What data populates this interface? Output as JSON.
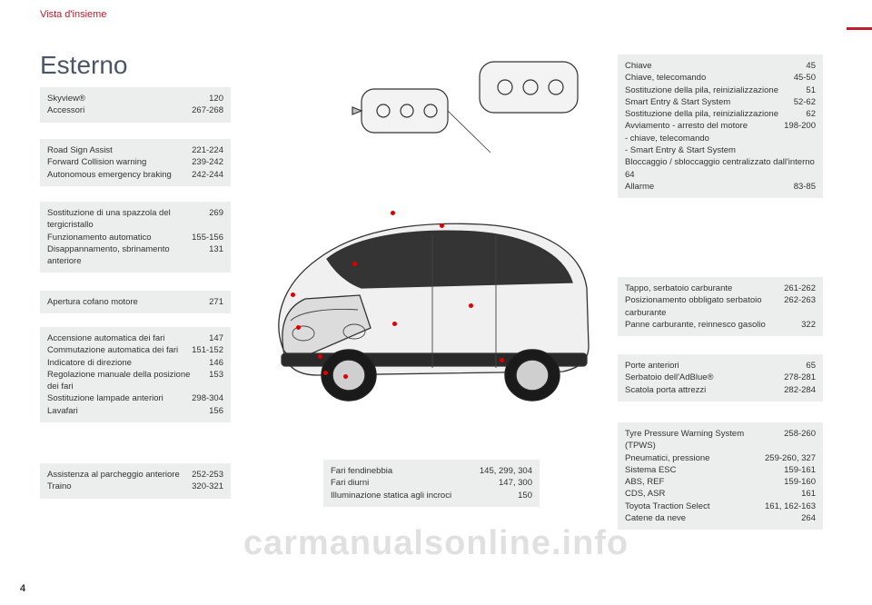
{
  "header": "Vista d'insieme",
  "title": "Esterno",
  "page_number": "4",
  "watermark": "carmanualsonline.info",
  "colors": {
    "accent": "#be1e2d",
    "box_bg": "#eceded",
    "title_color": "#4a5568",
    "text": "#333333"
  },
  "boxes": {
    "l1": [
      {
        "label": "Skyview®",
        "val": "120"
      },
      {
        "label": "Accessori",
        "val": "267-268"
      }
    ],
    "l2": [
      {
        "label": "Road Sign Assist",
        "val": "221-224"
      },
      {
        "label": "Forward Collision warning",
        "val": "239-242"
      },
      {
        "label": "Autonomous emergency braking",
        "val": "242-244"
      }
    ],
    "l3": [
      {
        "label": "Sostituzione di una spazzola del tergicristallo",
        "val": "269"
      },
      {
        "label": "Funzionamento automatico",
        "val": "155-156"
      },
      {
        "label": "Disappannamento, sbrinamento anteriore",
        "val": "131"
      }
    ],
    "l4": [
      {
        "label": "Apertura cofano motore",
        "val": "271"
      }
    ],
    "l5": [
      {
        "label": "Accensione automatica dei fari",
        "val": "147"
      },
      {
        "label": "Commutazione automatica dei fari",
        "val": "151-152"
      },
      {
        "label": "Indicatore di direzione",
        "val": "146"
      },
      {
        "label": "Regolazione manuale della posizione dei fari",
        "val": "153"
      },
      {
        "label": "Sostituzione lampade anteriori",
        "val": "298-304"
      },
      {
        "label": "Lavafari",
        "val": "156"
      }
    ],
    "l6": [
      {
        "label": "Assistenza al parcheggio anteriore",
        "val": "252-253"
      },
      {
        "label": "Traino",
        "val": "320-321"
      }
    ],
    "r1": [
      {
        "label": "Chiave",
        "val": "45"
      },
      {
        "label": "Chiave, telecomando",
        "val": "45-50"
      },
      {
        "label": "Sostituzione della pila, reinizializzazione",
        "val": "51"
      },
      {
        "label": "Smart Entry & Start System",
        "val": "52-62"
      },
      {
        "label": "Sostituzione della pila, reinizializzazione",
        "val": "62"
      },
      {
        "label": "Avviamento - arresto del motore",
        "val": "198-200"
      },
      {
        "label": "-   chiave, telecomando",
        "val": ""
      },
      {
        "label": "-   Smart Entry & Start System",
        "val": ""
      },
      {
        "label": "Bloccaggio / sbloccaggio centralizzato dall'interno     64",
        "val": ""
      },
      {
        "label": "Allarme",
        "val": "83-85"
      }
    ],
    "r2": [
      {
        "label": "Tappo, serbatoio carburante",
        "val": "261-262"
      },
      {
        "label": "Posizionamento obbligato serbatoio carburante",
        "val": "262-263"
      },
      {
        "label": "Panne carburante, reinnesco gasolio",
        "val": "322"
      }
    ],
    "r3": [
      {
        "label": "Porte anteriori",
        "val": "65"
      },
      {
        "label": "Serbatoio dell'AdBlue®",
        "val": "278-281"
      },
      {
        "label": "Scatola porta attrezzi",
        "val": "282-284"
      }
    ],
    "r4": [
      {
        "label": "Tyre Pressure Warning System (TPWS)",
        "val": "258-260"
      },
      {
        "label": "Pneumatici, pressione",
        "val": "259-260, 327"
      },
      {
        "label": "Sistema ESC",
        "val": "159-161"
      },
      {
        "label": "ABS, REF",
        "val": "159-160"
      },
      {
        "label": "CDS, ASR",
        "val": "161"
      },
      {
        "label": "Toyota Traction Select",
        "val": "161, 162-163"
      },
      {
        "label": "Catene da neve",
        "val": "264"
      }
    ],
    "c": [
      {
        "label": "Fari fendinebbia",
        "val": "145, 299, 304"
      },
      {
        "label": "Fari diurni",
        "val": "147, 300"
      },
      {
        "label": "Illuminazione statica agli incroci",
        "val": "150"
      }
    ]
  }
}
